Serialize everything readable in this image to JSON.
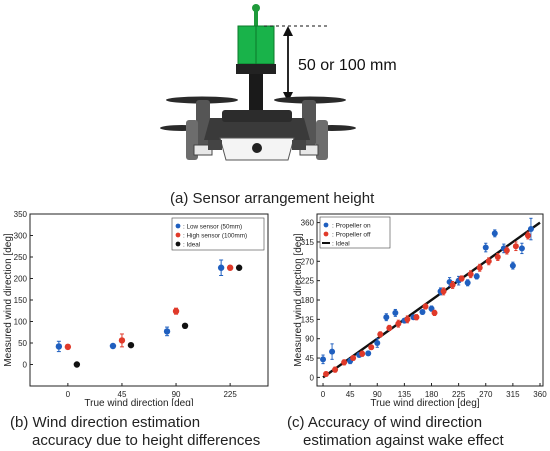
{
  "figure_a": {
    "height_label": "50 or 100 mm",
    "caption": "(a) Sensor arrangement height"
  },
  "chart_data": [
    {
      "type": "scatter",
      "caption_line1": "(b) Wind direction estimation",
      "caption_line2": "accuracy due to height differences",
      "xlabel": "True wind direction [deg]",
      "ylabel": "Measured wind direction [deg]",
      "categories": [
        "0",
        "45",
        "90",
        "225"
      ],
      "ylim": [
        -50,
        350
      ],
      "yticks": [
        0,
        50,
        100,
        150,
        200,
        250,
        300,
        350
      ],
      "series": [
        {
          "name": ": Low sensor (50mm)",
          "color": "#1f5fbf",
          "values": [
            42,
            43,
            77,
            225
          ],
          "err": [
            12,
            4,
            10,
            18
          ]
        },
        {
          "name": ": High sensor (100mm)",
          "color": "#e03a2a",
          "values": [
            41,
            56,
            124,
            225
          ],
          "err": [
            5,
            15,
            7,
            5
          ]
        },
        {
          "name": ": Ideal",
          "color": "#111111",
          "values": [
            0,
            45,
            90,
            225
          ],
          "err": [
            0,
            0,
            0,
            0
          ]
        }
      ],
      "legend": "top-right"
    },
    {
      "type": "scatter",
      "caption_line1": "(c) Accuracy of wind direction",
      "caption_line2": "estimation against wake effect",
      "xlabel": "True wind direction [deg]",
      "ylabel": "Measured wind direction [deg]",
      "xlim": [
        -10,
        365
      ],
      "ylim": [
        -20,
        380
      ],
      "xticks": [
        0,
        45,
        90,
        135,
        180,
        225,
        270,
        315,
        360
      ],
      "yticks": [
        0,
        45,
        90,
        135,
        180,
        225,
        270,
        315,
        360
      ],
      "ideal_line": {
        "name": ": Ideal",
        "color": "#111111",
        "x": [
          0,
          360
        ],
        "y": [
          0,
          360
        ]
      },
      "series": [
        {
          "name": ": Propeller on",
          "color": "#1f5fbf",
          "x": [
            0,
            15,
            45,
            60,
            75,
            90,
            105,
            120,
            135,
            150,
            165,
            180,
            195,
            210,
            225,
            240,
            255,
            270,
            285,
            300,
            315,
            330,
            345
          ],
          "y": [
            42,
            60,
            38,
            52,
            56,
            80,
            140,
            150,
            132,
            140,
            152,
            160,
            200,
            222,
            225,
            220,
            235,
            302,
            335,
            300,
            260,
            300,
            345
          ],
          "err": [
            10,
            18,
            6,
            4,
            5,
            10,
            8,
            8,
            5,
            5,
            5,
            6,
            8,
            10,
            10,
            7,
            6,
            10,
            8,
            10,
            8,
            12,
            25
          ]
        },
        {
          "name": ": Propeller off",
          "color": "#e03a2a",
          "x": [
            5,
            20,
            35,
            50,
            65,
            80,
            95,
            110,
            125,
            140,
            155,
            170,
            185,
            200,
            215,
            230,
            245,
            260,
            275,
            290,
            305,
            320,
            340
          ],
          "y": [
            8,
            18,
            35,
            45,
            55,
            70,
            100,
            115,
            125,
            135,
            140,
            165,
            150,
            200,
            215,
            230,
            240,
            255,
            270,
            280,
            295,
            305,
            330
          ],
          "err": [
            5,
            6,
            6,
            5,
            6,
            5,
            6,
            6,
            8,
            8,
            6,
            6,
            6,
            8,
            8,
            6,
            8,
            8,
            8,
            8,
            8,
            10,
            8
          ]
        }
      ],
      "legend": "top-left"
    }
  ]
}
